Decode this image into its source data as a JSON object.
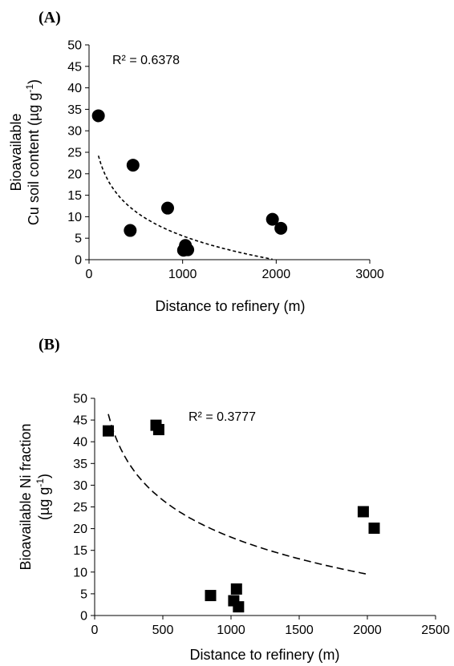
{
  "chart_data": [
    {
      "type": "scatter",
      "panel_label": "(A)",
      "annotation": "R² = 0.6378",
      "xlabel": "Distance to refinery (m)",
      "ylabel_line1": "Bioavailable",
      "ylabel_line2_main": "Cu soil content (µg g",
      "ylabel_line2_sup": "-1",
      "ylabel_line2_end": ")",
      "xlim": [
        0,
        3000
      ],
      "ylim": [
        0,
        50
      ],
      "xticks": [
        0,
        1000,
        2000,
        3000
      ],
      "yticks": [
        0,
        5,
        10,
        15,
        20,
        25,
        30,
        35,
        40,
        45,
        50
      ],
      "marker": "circle",
      "marker_color": "#000000",
      "points": [
        {
          "x": 100,
          "y": 33.5
        },
        {
          "x": 470,
          "y": 22
        },
        {
          "x": 440,
          "y": 6.8
        },
        {
          "x": 840,
          "y": 12
        },
        {
          "x": 1030,
          "y": 3.3
        },
        {
          "x": 1010,
          "y": 2.2
        },
        {
          "x": 1055,
          "y": 2.3
        },
        {
          "x": 1960,
          "y": 9.4
        },
        {
          "x": 2050,
          "y": 7.3
        }
      ],
      "trendline": {
        "style": "dotted-dashed",
        "a": 61.5,
        "b": -8.1,
        "form": "logarithmic",
        "x_range": [
          100,
          1960
        ]
      }
    },
    {
      "type": "scatter",
      "panel_label": "(B)",
      "annotation": "R² = 0.3777",
      "xlabel": "Distance to refinery (m)",
      "ylabel_line1": "Bioavailable Ni fraction",
      "ylabel_line2_main": "(µg g",
      "ylabel_line2_sup": "-1",
      "ylabel_line2_end": ")",
      "xlim": [
        0,
        2500
      ],
      "ylim": [
        0,
        50
      ],
      "xticks": [
        0,
        500,
        1000,
        1500,
        2000,
        2500
      ],
      "yticks": [
        0,
        5,
        10,
        15,
        20,
        25,
        30,
        35,
        40,
        45,
        50
      ],
      "marker": "square",
      "marker_color": "#000000",
      "points": [
        {
          "x": 100,
          "y": 42.5
        },
        {
          "x": 450,
          "y": 43.8
        },
        {
          "x": 470,
          "y": 42.8
        },
        {
          "x": 850,
          "y": 4.6
        },
        {
          "x": 1020,
          "y": 3.4
        },
        {
          "x": 1040,
          "y": 6.1
        },
        {
          "x": 1055,
          "y": 2.0
        },
        {
          "x": 1970,
          "y": 23.9
        },
        {
          "x": 2050,
          "y": 20.1
        }
      ],
      "trendline": {
        "style": "dashed",
        "a": 103,
        "b": -12.3,
        "form": "logarithmic",
        "x_range": [
          100,
          2000
        ]
      }
    }
  ]
}
